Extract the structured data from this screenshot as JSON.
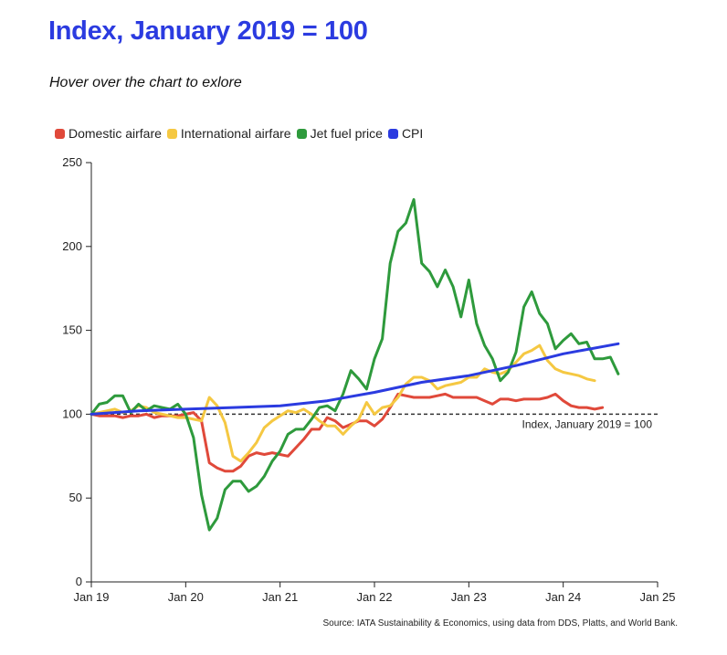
{
  "title": "Index, January 2019 = 100",
  "subtitle": "Hover over the chart to exlore",
  "source": "Source: IATA Sustainability & Economics, using data from DDS, Platts, and World Bank.",
  "reference_label": "Index, January 2019 = 100",
  "legend": [
    {
      "name": "Domestic airfare",
      "color": "#e0493a"
    },
    {
      "name": "International airfare",
      "color": "#f5c842"
    },
    {
      "name": "Jet fuel price",
      "color": "#2e9a3c"
    },
    {
      "name": "CPI",
      "color": "#2b3be0"
    }
  ],
  "chart_data": {
    "type": "line",
    "xlabel": "",
    "ylabel": "",
    "x_ticks": [
      "Jan 19",
      "Jan 20",
      "Jan 21",
      "Jan 22",
      "Jan 23",
      "Jan 24",
      "Jan 25"
    ],
    "y_ticks": [
      "0",
      "50",
      "100",
      "150",
      "200",
      "250"
    ],
    "xlim": [
      "2019-01",
      "2025-01"
    ],
    "ylim": [
      0,
      250
    ],
    "grid": false,
    "reference_line": 100,
    "series": [
      {
        "name": "Domestic airfare",
        "color": "#e0493a",
        "x": [
          "2019-01",
          "2019-02",
          "2019-03",
          "2019-04",
          "2019-05",
          "2019-06",
          "2019-07",
          "2019-08",
          "2019-09",
          "2019-10",
          "2019-11",
          "2019-12",
          "2020-01",
          "2020-02",
          "2020-03",
          "2020-04",
          "2020-05",
          "2020-06",
          "2020-07",
          "2020-08",
          "2020-09",
          "2020-10",
          "2020-11",
          "2020-12",
          "2021-01",
          "2021-02",
          "2021-03",
          "2021-04",
          "2021-05",
          "2021-06",
          "2021-07",
          "2021-08",
          "2021-09",
          "2021-10",
          "2021-11",
          "2021-12",
          "2022-01",
          "2022-02",
          "2022-03",
          "2022-04",
          "2022-05",
          "2022-06",
          "2022-07",
          "2022-08",
          "2022-09",
          "2022-10",
          "2022-11",
          "2022-12",
          "2023-01",
          "2023-02",
          "2023-03",
          "2023-04",
          "2023-05",
          "2023-06",
          "2023-07",
          "2023-08",
          "2023-09",
          "2023-10",
          "2023-11",
          "2023-12",
          "2024-01",
          "2024-02",
          "2024-03",
          "2024-04",
          "2024-05",
          "2024-06",
          "2024-07",
          "2024-08"
        ],
        "values": [
          100,
          99,
          99,
          99,
          98,
          99,
          99,
          100,
          98,
          99,
          99,
          99,
          100,
          101,
          96,
          71,
          68,
          66,
          66,
          69,
          75,
          77,
          76,
          77,
          76,
          75,
          80,
          85,
          91,
          91,
          98,
          96,
          92,
          94,
          96,
          96,
          93,
          97,
          104,
          112,
          111,
          110,
          110,
          110,
          111,
          112,
          110,
          110,
          110,
          110,
          108,
          106,
          109,
          109,
          108,
          109,
          109,
          109,
          110,
          112,
          108,
          105,
          104,
          104,
          103,
          104,
          null,
          null
        ]
      },
      {
        "name": "International airfare",
        "color": "#f5c842",
        "x": [
          "2019-01",
          "2019-02",
          "2019-03",
          "2019-04",
          "2019-05",
          "2019-06",
          "2019-07",
          "2019-08",
          "2019-09",
          "2019-10",
          "2019-11",
          "2019-12",
          "2020-01",
          "2020-02",
          "2020-03",
          "2020-04",
          "2020-05",
          "2020-06",
          "2020-07",
          "2020-08",
          "2020-09",
          "2020-10",
          "2020-11",
          "2020-12",
          "2021-01",
          "2021-02",
          "2021-03",
          "2021-04",
          "2021-05",
          "2021-06",
          "2021-07",
          "2021-08",
          "2021-09",
          "2021-10",
          "2021-11",
          "2021-12",
          "2022-01",
          "2022-02",
          "2022-03",
          "2022-04",
          "2022-05",
          "2022-06",
          "2022-07",
          "2022-08",
          "2022-09",
          "2022-10",
          "2022-11",
          "2022-12",
          "2023-01",
          "2023-02",
          "2023-03",
          "2023-04",
          "2023-05",
          "2023-06",
          "2023-07",
          "2023-08",
          "2023-09",
          "2023-10",
          "2023-11",
          "2023-12",
          "2024-01",
          "2024-02",
          "2024-03",
          "2024-04",
          "2024-05",
          "2024-06",
          "2024-07",
          "2024-08"
        ],
        "values": [
          100,
          101,
          102,
          103,
          101,
          102,
          105,
          104,
          101,
          100,
          99,
          98,
          98,
          97,
          96,
          110,
          105,
          95,
          75,
          72,
          77,
          83,
          92,
          96,
          99,
          102,
          101,
          103,
          100,
          96,
          93,
          93,
          88,
          93,
          97,
          107,
          100,
          104,
          105,
          110,
          118,
          122,
          122,
          120,
          115,
          117,
          118,
          119,
          122,
          122,
          127,
          125,
          124,
          126,
          131,
          136,
          138,
          141,
          132,
          127,
          125,
          124,
          123,
          121,
          120,
          null,
          null,
          null
        ]
      },
      {
        "name": "Jet fuel price",
        "color": "#2e9a3c",
        "x": [
          "2019-01",
          "2019-02",
          "2019-03",
          "2019-04",
          "2019-05",
          "2019-06",
          "2019-07",
          "2019-08",
          "2019-09",
          "2019-10",
          "2019-11",
          "2019-12",
          "2020-01",
          "2020-02",
          "2020-03",
          "2020-04",
          "2020-05",
          "2020-06",
          "2020-07",
          "2020-08",
          "2020-09",
          "2020-10",
          "2020-11",
          "2020-12",
          "2021-01",
          "2021-02",
          "2021-03",
          "2021-04",
          "2021-05",
          "2021-06",
          "2021-07",
          "2021-08",
          "2021-09",
          "2021-10",
          "2021-11",
          "2021-12",
          "2022-01",
          "2022-02",
          "2022-03",
          "2022-04",
          "2022-05",
          "2022-06",
          "2022-07",
          "2022-08",
          "2022-09",
          "2022-10",
          "2022-11",
          "2022-12",
          "2023-01",
          "2023-02",
          "2023-03",
          "2023-04",
          "2023-05",
          "2023-06",
          "2023-07",
          "2023-08",
          "2023-09",
          "2023-10",
          "2023-11",
          "2023-12",
          "2024-01",
          "2024-02",
          "2024-03",
          "2024-04",
          "2024-05",
          "2024-06",
          "2024-07",
          "2024-08"
        ],
        "values": [
          100,
          106,
          107,
          111,
          111,
          101,
          106,
          102,
          105,
          104,
          103,
          106,
          100,
          86,
          52,
          31,
          38,
          55,
          60,
          60,
          54,
          57,
          63,
          72,
          78,
          88,
          91,
          91,
          97,
          104,
          105,
          102,
          112,
          126,
          121,
          115,
          133,
          145,
          190,
          209,
          214,
          228,
          190,
          185,
          176,
          186,
          176,
          158,
          180,
          154,
          141,
          133,
          120,
          125,
          137,
          164,
          173,
          160,
          154,
          139,
          144,
          148,
          142,
          143,
          133,
          133,
          134,
          124
        ]
      },
      {
        "name": "CPI",
        "color": "#2b3be0",
        "x": [
          "2019-01",
          "2019-07",
          "2020-01",
          "2020-07",
          "2021-01",
          "2021-07",
          "2022-01",
          "2022-07",
          "2023-01",
          "2023-07",
          "2024-01",
          "2024-08"
        ],
        "values": [
          100,
          102,
          103,
          104,
          105,
          108,
          113,
          119,
          123,
          129,
          136,
          142
        ]
      }
    ]
  }
}
